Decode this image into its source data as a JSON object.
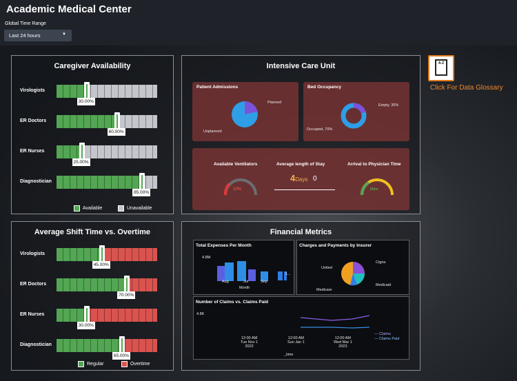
{
  "app": {
    "title": "Academic Medical Center"
  },
  "filter": {
    "label": "Global Time Range",
    "value": "Last 24 hours"
  },
  "glossary": {
    "label": "Click For Data Glossary",
    "icon_text": "A-Z"
  },
  "caregiver": {
    "title": "Caregiver Availability",
    "rows": [
      {
        "label": "Virologists",
        "value": "30.00%",
        "pct": 30
      },
      {
        "label": "ER Doctors",
        "value": "60.00%",
        "pct": 60
      },
      {
        "label": "ER Nurses",
        "value": "25.00%",
        "pct": 25
      },
      {
        "label": "Diagnostician",
        "value": "85.00%",
        "pct": 85
      }
    ],
    "legend": {
      "a": "Available",
      "b": "Unavailable"
    },
    "colors": {
      "a": "#53a653",
      "b": "#c4c6cc"
    }
  },
  "shift": {
    "title": "Average Shift Time vs. Overtime",
    "rows": [
      {
        "label": "Virologists",
        "value": "45.00%",
        "pct": 45
      },
      {
        "label": "ER Doctors",
        "value": "70.00%",
        "pct": 70
      },
      {
        "label": "ER Nurses",
        "value": "30.00%",
        "pct": 30
      },
      {
        "label": "Diagnostician",
        "value": "65.00%",
        "pct": 65
      }
    ],
    "legend": {
      "a": "Regular",
      "b": "Overtime"
    },
    "colors": {
      "a": "#53a653",
      "b": "#d9534f"
    }
  },
  "icu": {
    "title": "Intensive Care Unit",
    "admissions": {
      "title": "Patient Admissions",
      "planned": "Planned",
      "unplanned": "Unplanned"
    },
    "beds": {
      "title": "Bed Occupancy",
      "empty": "Empty, 30%",
      "occupied": "Occupied, 70%"
    },
    "vent": {
      "title": "Available Ventilators",
      "value": "10%"
    },
    "stay": {
      "title": "Average length of Stay",
      "value": "4",
      "unit": "Days",
      "delta": "0"
    },
    "arrival": {
      "title": "Arrival to Physician Time",
      "value": "Mins"
    }
  },
  "financial": {
    "title": "Financial Metrics",
    "expenses": {
      "title": "Total Expenses Per Month",
      "y": "4.8M",
      "months": [
        "Aug",
        "Jul",
        "Sep"
      ],
      "xlabel": "Month",
      "legend": "1..."
    },
    "charges": {
      "title": "Charges and Payments by Insurer",
      "labels": [
        "Cigna",
        "United",
        "Medicaid",
        "Medicare"
      ]
    },
    "claims": {
      "title": "Number of Claims vs. Claims Paid",
      "y": "4.8K",
      "ticks": [
        {
          "t": "12:00 AM",
          "d": "Tue Nov 1",
          "y": "2022"
        },
        {
          "t": "12:00 AM",
          "d": "Sun Jan 1",
          "y": ""
        },
        {
          "t": "12:00 AM",
          "d": "Wed Mar 1",
          "y": "2023"
        }
      ],
      "xlabel": "_time",
      "series": [
        "Claims",
        "Claims Paid"
      ]
    }
  }
}
